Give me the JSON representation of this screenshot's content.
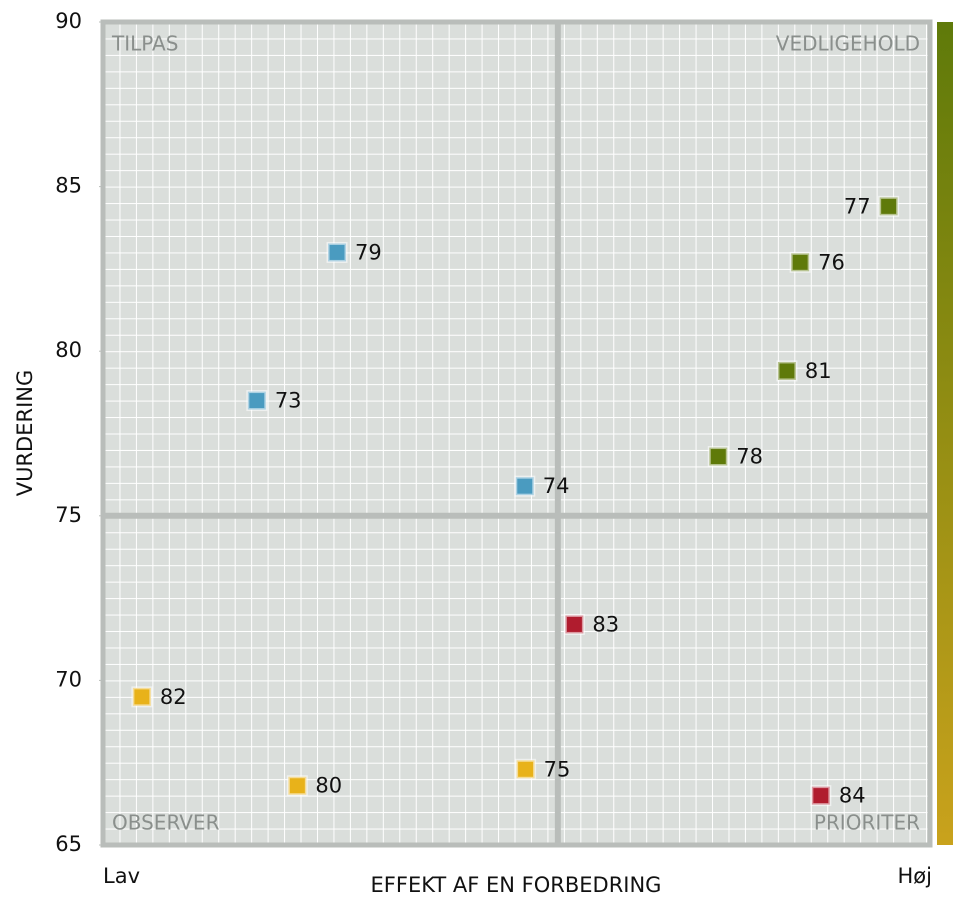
{
  "chart_data": {
    "type": "scatter",
    "xlabel": "EFFEKT AF EN FORBEDRING",
    "ylabel": "VURDERING",
    "x_low_label": "Lav",
    "x_high_label": "Høj",
    "quadrant_labels": {
      "top_left": "TILPAS",
      "top_right": "VEDLIGEHOLD",
      "bottom_left": "OBSERVER",
      "bottom_right": "PRIORITER"
    },
    "xlim": [
      0,
      100
    ],
    "ylim": [
      65,
      90
    ],
    "yticks": [
      65,
      70,
      75,
      80,
      85,
      90
    ],
    "x_split": 55,
    "y_split": 75,
    "points": [
      {
        "label": "79",
        "x": 28.3,
        "y": 83,
        "color": "#4a9bc0"
      },
      {
        "label": "73",
        "x": 18.6,
        "y": 78.5,
        "color": "#4a9bc0"
      },
      {
        "label": "74",
        "x": 51,
        "y": 75.9,
        "color": "#4a9bc0"
      },
      {
        "label": "77",
        "x": 95,
        "y": 84.4,
        "color": "#5f7a0a"
      },
      {
        "label": "76",
        "x": 84.3,
        "y": 82.7,
        "color": "#5f7a0a"
      },
      {
        "label": "81",
        "x": 82.7,
        "y": 79.4,
        "color": "#5f7a0a"
      },
      {
        "label": "78",
        "x": 74.4,
        "y": 76.8,
        "color": "#5f7a0a"
      },
      {
        "label": "83",
        "x": 57,
        "y": 71.7,
        "color": "#b01c2e"
      },
      {
        "label": "82",
        "x": 4.7,
        "y": 69.5,
        "color": "#e8b21a"
      },
      {
        "label": "80",
        "x": 23.5,
        "y": 66.8,
        "color": "#e8b21a"
      },
      {
        "label": "75",
        "x": 51.1,
        "y": 67.3,
        "color": "#e8b21a"
      },
      {
        "label": "84",
        "x": 86.8,
        "y": 66.5,
        "color": "#b01c2e"
      }
    ]
  }
}
